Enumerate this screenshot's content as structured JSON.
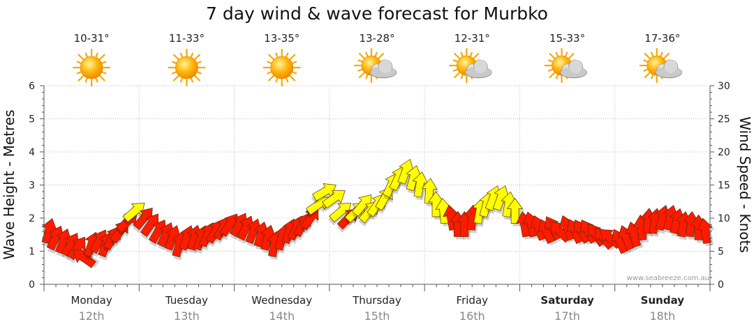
{
  "chart_data": {
    "type": "line",
    "title": "7 day wind & wave forecast for Murbko",
    "ylabel": "Wave Height - Metres",
    "y2label": "Wind Speed - Knots",
    "ylim": [
      0,
      6
    ],
    "y2lim": [
      0,
      30
    ],
    "yticks": [
      "0",
      "1",
      "2",
      "3",
      "4",
      "5",
      "6"
    ],
    "y2ticks": [
      "0",
      "5",
      "10",
      "15",
      "20",
      "25",
      "30"
    ],
    "watermark": "www.seabreeze.com.au",
    "days": [
      {
        "name": "Monday",
        "date": "12th",
        "temp": "10-31°",
        "weather": "sunny",
        "bold": false
      },
      {
        "name": "Tuesday",
        "date": "13th",
        "temp": "11-33°",
        "weather": "sunny",
        "bold": false
      },
      {
        "name": "Wednesday",
        "date": "14th",
        "temp": "13-35°",
        "weather": "sunny",
        "bold": false
      },
      {
        "name": "Thursday",
        "date": "15th",
        "temp": "13-28°",
        "weather": "partly-cloudy",
        "bold": false
      },
      {
        "name": "Friday",
        "date": "16th",
        "temp": "12-31°",
        "weather": "partly-cloudy",
        "bold": false
      },
      {
        "name": "Saturday",
        "date": "17th",
        "temp": "15-33°",
        "weather": "partly-cloudy",
        "bold": true
      },
      {
        "name": "Sunday",
        "date": "18th",
        "temp": "17-36°",
        "weather": "partly-cloudy",
        "bold": true
      }
    ],
    "series": [
      {
        "name": "Wind",
        "units": "knots",
        "x_unit": "day index (0 = Monday 00:00)",
        "color_low": "#ff1a00",
        "color_high": "#ffff00",
        "color_threshold_knots": 10.5,
        "points": [
          [
            0.05,
            8,
            15
          ],
          [
            0.12,
            7,
            25
          ],
          [
            0.2,
            6.5,
            20
          ],
          [
            0.28,
            6,
            30
          ],
          [
            0.35,
            5.5,
            35
          ],
          [
            0.42,
            4,
            -55
          ],
          [
            0.5,
            6,
            20
          ],
          [
            0.58,
            6.5,
            30
          ],
          [
            0.65,
            6,
            20
          ],
          [
            0.72,
            7,
            30
          ],
          [
            0.8,
            8,
            35
          ],
          [
            0.88,
            9.5,
            45
          ],
          [
            0.95,
            11,
            50
          ],
          [
            1.05,
            10,
            40
          ],
          [
            1.12,
            9,
            35
          ],
          [
            1.2,
            8,
            30
          ],
          [
            1.28,
            7.5,
            25
          ],
          [
            1.35,
            7,
            20
          ],
          [
            1.42,
            6,
            15
          ],
          [
            1.5,
            7,
            20
          ],
          [
            1.58,
            7,
            15
          ],
          [
            1.65,
            7,
            20
          ],
          [
            1.72,
            7.5,
            25
          ],
          [
            1.8,
            8,
            30
          ],
          [
            1.88,
            8.5,
            30
          ],
          [
            1.95,
            9,
            35
          ],
          [
            2.05,
            9,
            30
          ],
          [
            2.12,
            8.5,
            25
          ],
          [
            2.2,
            8,
            20
          ],
          [
            2.28,
            7.5,
            15
          ],
          [
            2.35,
            7,
            15
          ],
          [
            2.42,
            6,
            10
          ],
          [
            2.5,
            7,
            15
          ],
          [
            2.58,
            8,
            20
          ],
          [
            2.65,
            8.5,
            25
          ],
          [
            2.72,
            9,
            30
          ],
          [
            2.8,
            10,
            35
          ],
          [
            2.88,
            12,
            55
          ],
          [
            2.95,
            14,
            60
          ],
          [
            3.05,
            13,
            55
          ],
          [
            3.12,
            11,
            50
          ],
          [
            3.2,
            10,
            45
          ],
          [
            3.28,
            11,
            45
          ],
          [
            3.35,
            12,
            40
          ],
          [
            3.42,
            11,
            40
          ],
          [
            3.5,
            12,
            35
          ],
          [
            3.58,
            13,
            30
          ],
          [
            3.65,
            15,
            25
          ],
          [
            3.72,
            16,
            25
          ],
          [
            3.8,
            17,
            20
          ],
          [
            3.88,
            16,
            15
          ],
          [
            3.95,
            15,
            10
          ],
          [
            4.05,
            14,
            5
          ],
          [
            4.12,
            12,
            0
          ],
          [
            4.2,
            11,
            -5
          ],
          [
            4.28,
            10,
            -10
          ],
          [
            4.35,
            9,
            0
          ],
          [
            4.42,
            9,
            0
          ],
          [
            4.5,
            10,
            5
          ],
          [
            4.58,
            11,
            10
          ],
          [
            4.65,
            12,
            15
          ],
          [
            4.72,
            13,
            20
          ],
          [
            4.8,
            13,
            20
          ],
          [
            4.88,
            12,
            10
          ],
          [
            4.95,
            11,
            0
          ],
          [
            5.05,
            9,
            -10
          ],
          [
            5.12,
            9,
            -15
          ],
          [
            5.2,
            8.5,
            -20
          ],
          [
            5.28,
            8,
            -25
          ],
          [
            5.35,
            8.5,
            -30
          ],
          [
            5.42,
            8,
            -45
          ],
          [
            5.5,
            8.5,
            -20
          ],
          [
            5.58,
            8,
            -25
          ],
          [
            5.65,
            8,
            -30
          ],
          [
            5.72,
            8,
            -30
          ],
          [
            5.8,
            7.5,
            -35
          ],
          [
            5.88,
            7,
            -40
          ],
          [
            5.95,
            7,
            -50
          ],
          [
            6.05,
            6.5,
            -25
          ],
          [
            6.12,
            7,
            -20
          ],
          [
            6.2,
            7.5,
            -15
          ],
          [
            6.28,
            8.5,
            -5
          ],
          [
            6.35,
            9.5,
            5
          ],
          [
            6.42,
            9.5,
            10
          ],
          [
            6.5,
            10,
            15
          ],
          [
            6.58,
            10,
            15
          ],
          [
            6.65,
            9.5,
            15
          ],
          [
            6.72,
            9,
            10
          ],
          [
            6.8,
            9,
            5
          ],
          [
            6.88,
            8.5,
            0
          ],
          [
            6.95,
            8,
            -10
          ]
        ]
      },
      {
        "name": "Wave height",
        "units": "m",
        "visible": false
      }
    ]
  }
}
